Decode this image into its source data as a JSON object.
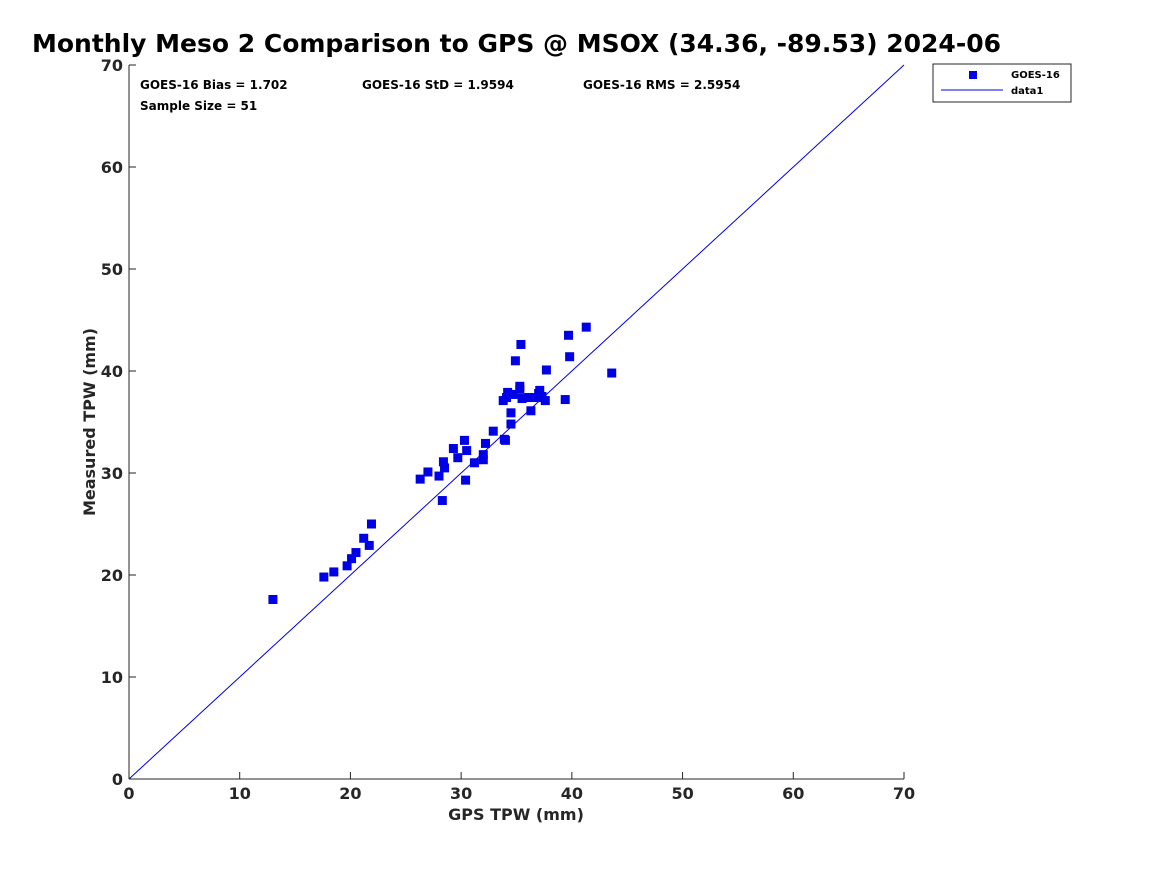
{
  "chart_data": {
    "type": "scatter",
    "title": "Monthly Meso 2 Comparison to GPS @ MSOX (34.36, -89.53) 2024-06",
    "xlabel": "GPS TPW (mm)",
    "ylabel": "Measured TPW (mm)",
    "xlim": [
      0,
      70
    ],
    "ylim": [
      0,
      70
    ],
    "xticks": [
      "0",
      "10",
      "20",
      "30",
      "40",
      "50",
      "60",
      "70"
    ],
    "yticks": [
      "0",
      "10",
      "20",
      "30",
      "40",
      "50",
      "60",
      "70"
    ],
    "grid": false,
    "legend_position": "outside-top-right",
    "stats": {
      "bias": "GOES-16 Bias = 1.702",
      "std": "GOES-16 StD = 1.9594",
      "rms": "GOES-16 RMS = 2.5954",
      "sample": "Sample Size = 51"
    },
    "series": [
      {
        "name": "GOES-16",
        "kind": "scatter",
        "marker": "square",
        "color": "#0000e6",
        "points": [
          [
            13.0,
            17.6
          ],
          [
            17.6,
            19.8
          ],
          [
            18.5,
            20.3
          ],
          [
            19.7,
            20.9
          ],
          [
            20.1,
            21.6
          ],
          [
            20.5,
            22.2
          ],
          [
            21.2,
            23.6
          ],
          [
            21.7,
            22.9
          ],
          [
            21.9,
            25.0
          ],
          [
            26.3,
            29.4
          ],
          [
            27.0,
            30.1
          ],
          [
            28.0,
            29.7
          ],
          [
            28.3,
            27.3
          ],
          [
            28.4,
            31.1
          ],
          [
            28.5,
            30.5
          ],
          [
            29.3,
            32.4
          ],
          [
            29.7,
            31.5
          ],
          [
            30.3,
            33.2
          ],
          [
            30.4,
            29.3
          ],
          [
            30.5,
            32.2
          ],
          [
            31.2,
            31.0
          ],
          [
            32.0,
            31.8
          ],
          [
            32.0,
            31.3
          ],
          [
            32.2,
            32.9
          ],
          [
            32.9,
            34.1
          ],
          [
            33.8,
            37.1
          ],
          [
            33.9,
            33.3
          ],
          [
            34.0,
            33.2
          ],
          [
            34.1,
            37.4
          ],
          [
            34.2,
            37.9
          ],
          [
            34.5,
            34.8
          ],
          [
            34.5,
            35.9
          ],
          [
            34.7,
            37.7
          ],
          [
            34.9,
            41.0
          ],
          [
            35.3,
            38.2
          ],
          [
            35.3,
            38.5
          ],
          [
            35.4,
            42.6
          ],
          [
            35.5,
            37.3
          ],
          [
            36.1,
            37.4
          ],
          [
            36.3,
            36.1
          ],
          [
            36.9,
            37.4
          ],
          [
            37.0,
            37.8
          ],
          [
            37.1,
            38.1
          ],
          [
            37.3,
            37.5
          ],
          [
            37.6,
            37.1
          ],
          [
            37.7,
            40.1
          ],
          [
            39.4,
            37.2
          ],
          [
            39.7,
            43.5
          ],
          [
            39.8,
            41.4
          ],
          [
            41.3,
            44.3
          ],
          [
            43.6,
            39.8
          ]
        ]
      },
      {
        "name": "data1",
        "kind": "line",
        "color": "#0000e6",
        "points": [
          [
            0,
            0
          ],
          [
            70,
            70
          ]
        ]
      }
    ]
  }
}
